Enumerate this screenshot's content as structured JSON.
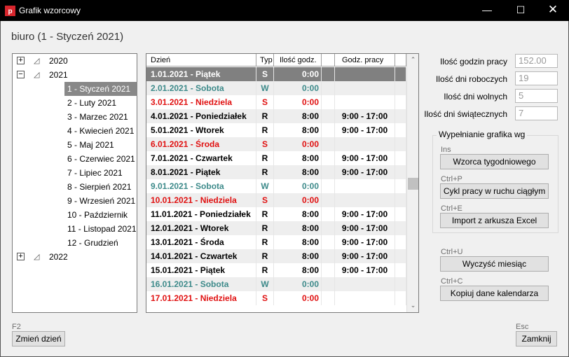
{
  "window": {
    "title": "Grafik wzorcowy",
    "app_icon_letter": "p"
  },
  "title_buttons": {
    "minimize": "—",
    "maximize": "☐",
    "close": "✕"
  },
  "header": {
    "title": "biuro (1 - Styczeń 2021)"
  },
  "tree": {
    "years": [
      {
        "label": "2020",
        "expander": "+"
      },
      {
        "label": "2021",
        "expander": "−"
      },
      {
        "label": "2022",
        "expander": "+"
      }
    ],
    "months": [
      "1 - Styczeń 2021",
      "2 - Luty 2021",
      "3 - Marzec 2021",
      "4 - Kwiecień 2021",
      "5 - Maj 2021",
      "6 - Czerwiec 2021",
      "7 - Lipiec 2021",
      "8 - Sierpień 2021",
      "9 - Wrzesień 2021",
      "10 - Październik 2021",
      "11 - Listopad 2021",
      "12 - Grudzień 2021"
    ],
    "selected_month_index": 0
  },
  "grid": {
    "columns": {
      "day": "Dzień",
      "type": "Typ",
      "hours": "Ilość godz.",
      "work_hours": "Godz. pracy"
    },
    "colors": {
      "work": "#000000",
      "saturday": "#3d8a8a",
      "sunday": "#e01010",
      "selected_bg": "#808080"
    },
    "rows": [
      {
        "day": "1.01.2021 - Piątek",
        "type": "S",
        "hours": "0:00",
        "time": "",
        "kind": "selected"
      },
      {
        "day": "2.01.2021 - Sobota",
        "type": "W",
        "hours": "0:00",
        "time": "",
        "kind": "saturday"
      },
      {
        "day": "3.01.2021 - Niedziela",
        "type": "S",
        "hours": "0:00",
        "time": "",
        "kind": "sunday"
      },
      {
        "day": "4.01.2021 - Poniedziałek",
        "type": "R",
        "hours": "8:00",
        "time": "9:00 - 17:00",
        "kind": "work"
      },
      {
        "day": "5.01.2021 - Wtorek",
        "type": "R",
        "hours": "8:00",
        "time": "9:00 - 17:00",
        "kind": "work"
      },
      {
        "day": "6.01.2021 - Środa",
        "type": "S",
        "hours": "0:00",
        "time": "",
        "kind": "sunday"
      },
      {
        "day": "7.01.2021 - Czwartek",
        "type": "R",
        "hours": "8:00",
        "time": "9:00 - 17:00",
        "kind": "work"
      },
      {
        "day": "8.01.2021 - Piątek",
        "type": "R",
        "hours": "8:00",
        "time": "9:00 - 17:00",
        "kind": "work"
      },
      {
        "day": "9.01.2021 - Sobota",
        "type": "W",
        "hours": "0:00",
        "time": "",
        "kind": "saturday"
      },
      {
        "day": "10.01.2021 - Niedziela",
        "type": "S",
        "hours": "0:00",
        "time": "",
        "kind": "sunday"
      },
      {
        "day": "11.01.2021 - Poniedziałek",
        "type": "R",
        "hours": "8:00",
        "time": "9:00 - 17:00",
        "kind": "work"
      },
      {
        "day": "12.01.2021 - Wtorek",
        "type": "R",
        "hours": "8:00",
        "time": "9:00 - 17:00",
        "kind": "work"
      },
      {
        "day": "13.01.2021 - Środa",
        "type": "R",
        "hours": "8:00",
        "time": "9:00 - 17:00",
        "kind": "work"
      },
      {
        "day": "14.01.2021 - Czwartek",
        "type": "R",
        "hours": "8:00",
        "time": "9:00 - 17:00",
        "kind": "work"
      },
      {
        "day": "15.01.2021 - Piątek",
        "type": "R",
        "hours": "8:00",
        "time": "9:00 - 17:00",
        "kind": "work"
      },
      {
        "day": "16.01.2021 - Sobota",
        "type": "W",
        "hours": "0:00",
        "time": "",
        "kind": "saturday"
      },
      {
        "day": "17.01.2021 - Niedziela",
        "type": "S",
        "hours": "0:00",
        "time": "",
        "kind": "sunday"
      }
    ]
  },
  "stats": {
    "hours_label": "Ilość godzin pracy",
    "hours_value": "152.00",
    "workdays_label": "Ilość dni roboczych",
    "workdays_value": "19",
    "freedays_label": "Ilość dni wolnych",
    "freedays_value": "5",
    "holidays_label": "Ilość dni świątecznych",
    "holidays_value": "7"
  },
  "fill_group": {
    "title": "Wypełnianie grafika wg",
    "weekly": {
      "shortcut": "Ins",
      "label": "Wzorca tygodniowego"
    },
    "cycle": {
      "shortcut": "Ctrl+P",
      "label": "Cykl pracy w ruchu ciągłym"
    },
    "excel": {
      "shortcut": "Ctrl+E",
      "label": "Import z arkusza Excel"
    }
  },
  "actions": {
    "clear": {
      "shortcut": "Ctrl+U",
      "label": "Wyczyść miesiąc"
    },
    "copy": {
      "shortcut": "Ctrl+C",
      "label": "Kopiuj dane kalendarza"
    },
    "change_day": {
      "shortcut": "F2",
      "label": "Zmień dzień"
    },
    "close": {
      "shortcut": "Esc",
      "label": "Zamknij"
    }
  },
  "scrollbar": {
    "up": "⌃",
    "down": "⌄"
  }
}
